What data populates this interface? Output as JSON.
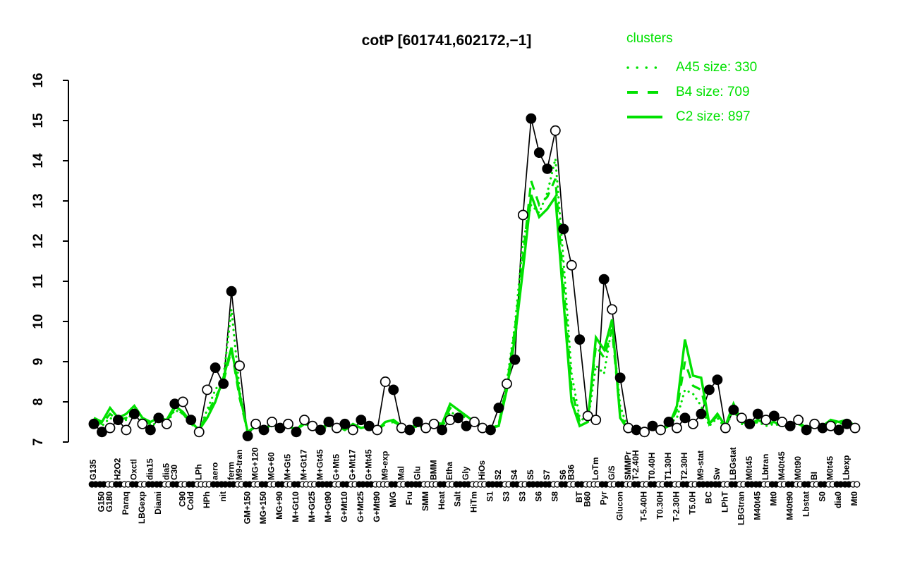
{
  "title": "cotP [601741,602172,−1]",
  "legend": {
    "header": "clusters",
    "entries": [
      {
        "label": "A45 size: 330",
        "style": "dotted"
      },
      {
        "label": "B4 size: 709",
        "style": "dashed"
      },
      {
        "label": "C2 size: 897",
        "style": "solid"
      }
    ]
  },
  "colors": {
    "cluster_green": "#00e100",
    "series_black": "#000000",
    "background": "#ffffff"
  },
  "chart_data": {
    "type": "line",
    "title": "cotP [601741,602172,−1]",
    "xlabel": "",
    "ylabel": "",
    "ylim": [
      7,
      16
    ],
    "yticks": [
      7,
      8,
      9,
      10,
      11,
      12,
      13,
      14,
      15,
      16
    ],
    "grid": false,
    "legend_position": "top-right",
    "categories": [
      "G135",
      "G150",
      "G180",
      "H2O2",
      "Paraq",
      "Oxctl",
      "LBGexp",
      "dia15",
      "Diami",
      "dia5",
      "C30",
      "C90",
      "Cold",
      "LPh",
      "HPh",
      "aero",
      "nit",
      "ferm",
      "M9-tran",
      "GM+150",
      "MG+120",
      "MG+150",
      "MG+60",
      "MG+90",
      "M+Gt5",
      "M+Gt10",
      "M+Gt17",
      "M+Gt25",
      "M+Gt45",
      "M+Gt90",
      "G+Mt5",
      "G+Mt10",
      "G+Mt17",
      "G+Mt25",
      "G+Mt45",
      "G+Mt90",
      "M9-exp",
      "M/G",
      "Mal",
      "Fru",
      "Glu",
      "SMM",
      "BMM",
      "Heat",
      "Etha",
      "Salt",
      "Gly",
      "HiTm",
      "HiOs",
      "S1",
      "S2",
      "S3",
      "S4",
      "S3",
      "S5",
      "S6",
      "S7",
      "S8",
      "S6",
      "B36",
      "BT",
      "B60",
      "LoTm",
      "Pyr",
      "G/S",
      "Glucon",
      "SMMPr",
      "T-2.40H",
      "T-5.40H",
      "T0.40H",
      "T0.30H",
      "T1.30H",
      "T-2.30H",
      "T2.30H",
      "T5.0H",
      "M9-stat",
      "BC",
      "Sw",
      "LPhT",
      "LBGstat",
      "LBGtran",
      "M0t45",
      "M40t45",
      "Lbtran",
      "Mt0",
      "M40t45",
      "M40t90",
      "M0t90",
      "Lbstat",
      "BI",
      "S0",
      "M0t45",
      "dia0",
      "Lbexp",
      "Mt0"
    ],
    "label_row": [
      "t",
      "b",
      "b",
      "t",
      "b",
      "t",
      "b",
      "t",
      "b",
      "t",
      "t",
      "b",
      "b",
      "t",
      "b",
      "t",
      "b",
      "t",
      "t",
      "b",
      "t",
      "b",
      "t",
      "b",
      "t",
      "b",
      "t",
      "b",
      "t",
      "b",
      "t",
      "b",
      "t",
      "b",
      "t",
      "b",
      "t",
      "b",
      "t",
      "b",
      "t",
      "b",
      "t",
      "b",
      "t",
      "b",
      "t",
      "b",
      "t",
      "b",
      "t",
      "b",
      "t",
      "b",
      "t",
      "b",
      "t",
      "b",
      "t",
      "t",
      "b",
      "b",
      "t",
      "b",
      "t",
      "b",
      "t",
      "t",
      "b",
      "t",
      "b",
      "t",
      "b",
      "t",
      "b",
      "t",
      "b",
      "t",
      "b",
      "t",
      "b",
      "t",
      "b",
      "t",
      "b",
      "t",
      "b",
      "t",
      "b",
      "t",
      "b",
      "t",
      "b",
      "t",
      "b"
    ],
    "markers": [
      "f",
      "f",
      "o",
      "f",
      "o",
      "f",
      "o",
      "f",
      "f",
      "o",
      "f",
      "o",
      "f",
      "o",
      "o",
      "f",
      "f",
      "f",
      "o",
      "f",
      "o",
      "f",
      "o",
      "f",
      "o",
      "f",
      "o",
      "o",
      "f",
      "f",
      "o",
      "f",
      "o",
      "f",
      "f",
      "o",
      "o",
      "f",
      "o",
      "f",
      "f",
      "o",
      "o",
      "f",
      "o",
      "f",
      "f",
      "o",
      "o",
      "f",
      "f",
      "o",
      "f",
      "o",
      "f",
      "f",
      "f",
      "o",
      "f",
      "o",
      "f",
      "o",
      "o",
      "f",
      "o",
      "f",
      "o",
      "f",
      "o",
      "f",
      "o",
      "f",
      "o",
      "f",
      "o",
      "f",
      "f",
      "f",
      "o",
      "f",
      "o",
      "f",
      "f",
      "o",
      "f",
      "o",
      "f",
      "o",
      "f",
      "o",
      "f",
      "o",
      "f",
      "f",
      "o"
    ],
    "series": [
      {
        "name": "cotP expression",
        "color": "#000000",
        "style": "solid-markers",
        "values": [
          7.45,
          7.25,
          7.35,
          7.55,
          7.3,
          7.7,
          7.45,
          7.3,
          7.6,
          7.45,
          7.95,
          8.0,
          7.55,
          7.25,
          8.3,
          8.85,
          8.45,
          10.75,
          8.9,
          7.15,
          7.45,
          7.3,
          7.5,
          7.35,
          7.45,
          7.25,
          7.55,
          7.4,
          7.3,
          7.5,
          7.35,
          7.45,
          7.3,
          7.55,
          7.4,
          7.3,
          8.5,
          8.3,
          7.35,
          7.3,
          7.5,
          7.35,
          7.45,
          7.3,
          7.55,
          7.6,
          7.4,
          7.5,
          7.35,
          7.3,
          7.85,
          8.45,
          9.05,
          12.65,
          15.05,
          14.2,
          13.8,
          14.75,
          12.3,
          11.4,
          9.55,
          7.65,
          7.55,
          11.05,
          10.3,
          8.6,
          7.35,
          7.3,
          7.25,
          7.4,
          7.3,
          7.5,
          7.35,
          7.6,
          7.45,
          7.7,
          8.3,
          8.55,
          7.35,
          7.8,
          7.6,
          7.45,
          7.7,
          7.55,
          7.65,
          7.5,
          7.4,
          7.55,
          7.3,
          7.45,
          7.35,
          7.4,
          7.3,
          7.45,
          7.35
        ]
      },
      {
        "name": "A45 size: 330",
        "color": "#00e100",
        "style": "dotted",
        "values": [
          7.5,
          7.4,
          7.6,
          7.5,
          7.55,
          7.75,
          7.5,
          7.4,
          7.5,
          7.45,
          7.8,
          7.7,
          7.45,
          7.3,
          7.8,
          8.3,
          8.6,
          10.3,
          8.3,
          7.2,
          7.4,
          7.3,
          7.4,
          7.35,
          7.4,
          7.3,
          7.45,
          7.35,
          7.3,
          7.4,
          7.35,
          7.3,
          7.4,
          7.35,
          7.4,
          7.3,
          7.5,
          7.55,
          7.35,
          7.3,
          7.4,
          7.35,
          7.4,
          7.35,
          7.75,
          7.65,
          7.5,
          7.45,
          7.35,
          7.3,
          7.45,
          8.5,
          9.9,
          12.0,
          12.9,
          12.7,
          13.2,
          14.05,
          11.5,
          8.7,
          7.6,
          7.5,
          8.9,
          8.7,
          9.9,
          7.9,
          7.3,
          7.25,
          7.3,
          7.35,
          7.3,
          7.45,
          7.6,
          8.3,
          8.2,
          7.9,
          7.4,
          7.6,
          7.35,
          7.8,
          7.45,
          7.4,
          7.5,
          7.4,
          7.45,
          7.4,
          7.4,
          7.45,
          7.3,
          7.4,
          7.35,
          7.5,
          7.45,
          7.5,
          7.35
        ]
      },
      {
        "name": "B4 size: 709",
        "color": "#00e100",
        "style": "dashed",
        "values": [
          7.55,
          7.45,
          7.7,
          7.55,
          7.6,
          7.8,
          7.55,
          7.45,
          7.55,
          7.5,
          7.85,
          7.7,
          7.5,
          7.3,
          7.7,
          8.1,
          8.5,
          9.3,
          8.1,
          7.25,
          7.4,
          7.3,
          7.45,
          7.35,
          7.4,
          7.3,
          7.45,
          7.4,
          7.35,
          7.4,
          7.4,
          7.3,
          7.4,
          7.35,
          7.4,
          7.3,
          7.45,
          7.5,
          7.4,
          7.35,
          7.4,
          7.4,
          7.45,
          7.4,
          7.85,
          7.7,
          7.6,
          7.45,
          7.4,
          7.35,
          7.45,
          8.4,
          9.8,
          11.6,
          13.5,
          12.9,
          13.1,
          13.55,
          10.9,
          8.3,
          7.5,
          7.55,
          9.4,
          9.1,
          9.8,
          7.65,
          7.3,
          7.25,
          7.3,
          7.35,
          7.3,
          7.4,
          7.8,
          9.0,
          8.4,
          8.3,
          7.45,
          7.65,
          7.4,
          7.85,
          7.5,
          7.45,
          7.5,
          7.45,
          7.5,
          7.4,
          7.45,
          7.45,
          7.35,
          7.4,
          7.4,
          7.5,
          7.45,
          7.5,
          7.4
        ]
      },
      {
        "name": "C2 size: 897",
        "color": "#00e100",
        "style": "solid",
        "values": [
          7.6,
          7.5,
          7.85,
          7.6,
          7.7,
          7.9,
          7.6,
          7.5,
          7.6,
          7.55,
          7.9,
          7.75,
          7.5,
          7.3,
          7.6,
          8.0,
          8.6,
          9.35,
          8.2,
          7.25,
          7.4,
          7.3,
          7.45,
          7.35,
          7.4,
          7.3,
          7.5,
          7.4,
          7.35,
          7.45,
          7.4,
          7.3,
          7.45,
          7.35,
          7.4,
          7.3,
          7.5,
          7.55,
          7.4,
          7.35,
          7.45,
          7.4,
          7.5,
          7.45,
          7.95,
          7.8,
          7.65,
          7.5,
          7.4,
          7.35,
          7.4,
          8.3,
          9.6,
          11.3,
          13.15,
          12.6,
          12.8,
          13.1,
          10.5,
          8.0,
          7.4,
          7.5,
          9.6,
          9.3,
          10.05,
          7.6,
          7.3,
          7.25,
          7.3,
          7.35,
          7.3,
          7.4,
          7.9,
          9.55,
          8.65,
          8.6,
          7.45,
          7.7,
          7.4,
          7.95,
          7.5,
          7.45,
          7.55,
          7.45,
          7.5,
          7.4,
          7.45,
          7.5,
          7.35,
          7.45,
          7.4,
          7.55,
          7.5,
          7.55,
          7.4
        ]
      }
    ]
  }
}
